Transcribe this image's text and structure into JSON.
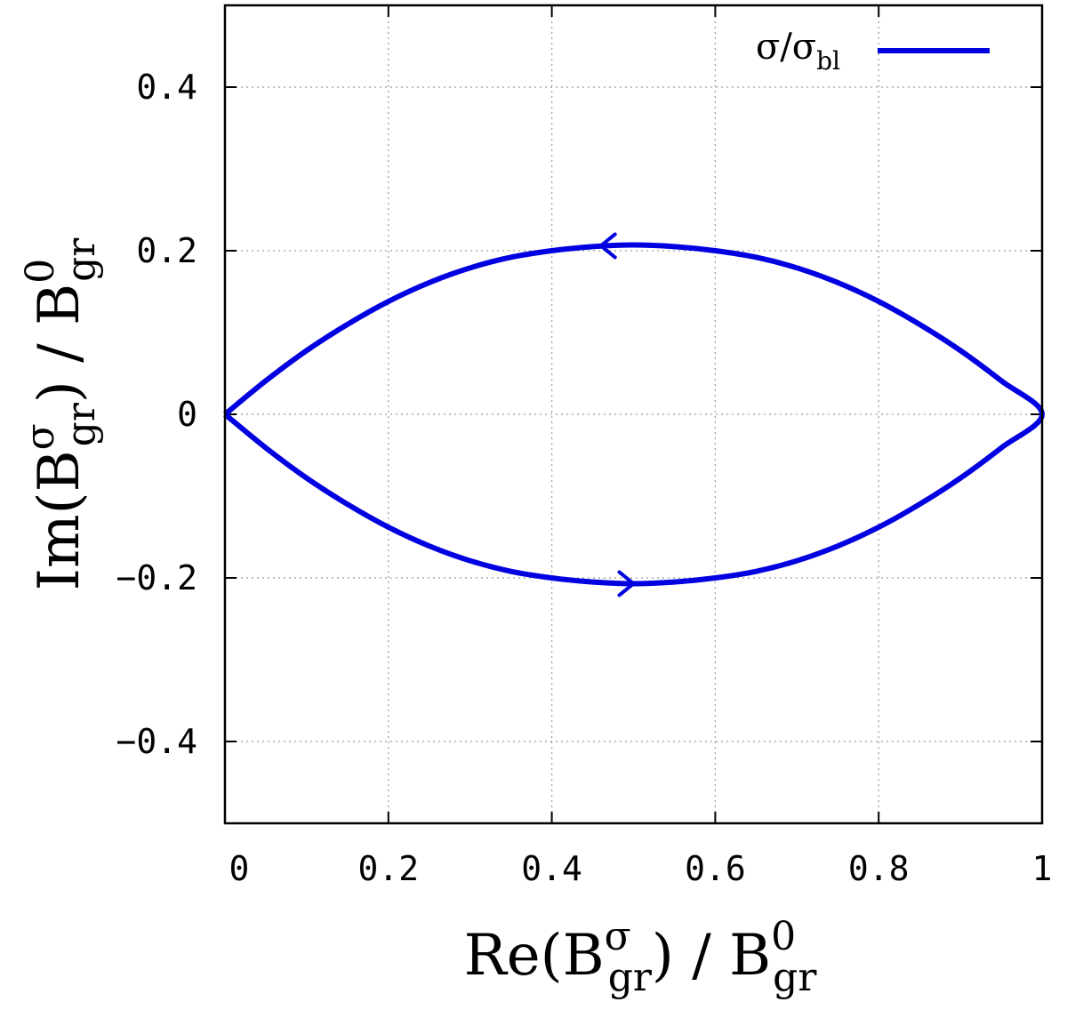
{
  "chart_data": {
    "type": "line",
    "xlabel": {
      "prefix": "Re(B",
      "sup1": "σ",
      "sub1": "gr",
      "mid": ") / B",
      "sup2": "0",
      "sub2": "gr"
    },
    "ylabel": {
      "prefix": "Im(B",
      "sup1": "σ",
      "sub1": "gr",
      "mid": ") / B",
      "sup2": "0",
      "sub2": "gr"
    },
    "xlim": [
      0,
      1
    ],
    "ylim": [
      -0.5,
      0.5
    ],
    "xticks": [
      0,
      0.2,
      0.4,
      0.6,
      0.8,
      1
    ],
    "xtick_labels": [
      "0",
      "0.2",
      "0.4",
      "0.6",
      "0.8",
      "1"
    ],
    "yticks": [
      -0.4,
      -0.2,
      0,
      0.2,
      0.4
    ],
    "ytick_labels": [
      "-0.4",
      "-0.2",
      "0",
      "0.2",
      "0.4"
    ],
    "grid": true,
    "legend_position": "top-right",
    "series": [
      {
        "name": {
          "base": "σ/σ",
          "sub": "bl"
        },
        "color": "#0000e0",
        "x": [
          0,
          0.05,
          0.1,
          0.15,
          0.2,
          0.25,
          0.3,
          0.35,
          0.4,
          0.45,
          0.5,
          0.55,
          0.6,
          0.65,
          0.7,
          0.75,
          0.8,
          0.85,
          0.9,
          0.95,
          1,
          0.95,
          0.9,
          0.85,
          0.8,
          0.75,
          0.7,
          0.65,
          0.6,
          0.55,
          0.5,
          0.45,
          0.4,
          0.35,
          0.3,
          0.25,
          0.2,
          0.15,
          0.1,
          0.05,
          0
        ],
        "y": [
          0,
          -0.041,
          -0.078,
          -0.11,
          -0.138,
          -0.161,
          -0.179,
          -0.192,
          -0.2,
          -0.205,
          -0.207,
          -0.205,
          -0.2,
          -0.192,
          -0.179,
          -0.161,
          -0.138,
          -0.11,
          -0.078,
          -0.041,
          0,
          0.041,
          0.078,
          0.11,
          0.138,
          0.161,
          0.179,
          0.192,
          0.2,
          0.205,
          0.207,
          0.205,
          0.2,
          0.192,
          0.179,
          0.161,
          0.138,
          0.11,
          0.078,
          0.041,
          0
        ],
        "arrows": [
          {
            "x": 0.46,
            "y": 0.206,
            "direction": "left"
          },
          {
            "x": 0.5,
            "y": -0.207,
            "direction": "right"
          }
        ]
      }
    ]
  }
}
